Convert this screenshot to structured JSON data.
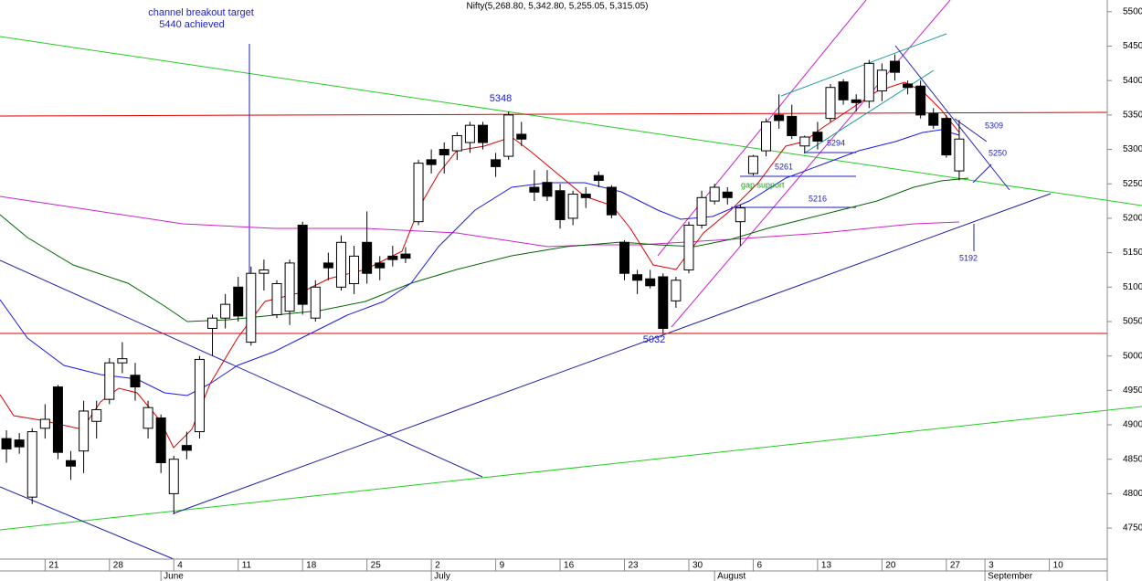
{
  "chart_data": {
    "type": "candlestick",
    "title": "Nifty(5,268.80, 5,342.80, 5,255.05, 5,315.05)",
    "open": [
      4880,
      4878,
      4795,
      4895,
      4955,
      4848,
      4862,
      4905,
      4937,
      4990,
      4972,
      4895,
      4910,
      4800,
      4870,
      4890,
      5040,
      5055,
      5100,
      5020,
      5120,
      5060,
      5065,
      5190,
      5055,
      5135,
      5100,
      5105,
      5165,
      5135,
      5145,
      5148,
      5195,
      5285,
      5300,
      5298,
      5310,
      5335,
      5285,
      5290,
      5322,
      5245,
      5252,
      5240,
      5200,
      5235,
      5262,
      5245,
      5165,
      5118,
      5112,
      5115,
      5080,
      5125,
      5190,
      5225,
      5238,
      5195,
      5265,
      5298,
      5350,
      5348,
      5305,
      5325,
      5345,
      5398,
      5372,
      5370,
      5385,
      5428,
      5395,
      5392,
      5352,
      5345,
      5268.8
    ],
    "high": [
      4892,
      4888,
      4895,
      4930,
      4958,
      4862,
      4935,
      4935,
      4997,
      5020,
      4990,
      4935,
      4915,
      4855,
      4890,
      5000,
      5060,
      5090,
      5115,
      5130,
      5140,
      5110,
      5140,
      5195,
      5110,
      5150,
      5175,
      5160,
      5210,
      5145,
      5160,
      5158,
      5285,
      5300,
      5310,
      5325,
      5340,
      5340,
      5295,
      5355,
      5340,
      5270,
      5270,
      5250,
      5240,
      5245,
      5268,
      5248,
      5168,
      5125,
      5125,
      5120,
      5115,
      5195,
      5240,
      5250,
      5245,
      5220,
      5292,
      5345,
      5380,
      5365,
      5320,
      5340,
      5395,
      5402,
      5380,
      5430,
      5425,
      5438,
      5400,
      5400,
      5360,
      5350,
      5342.8
    ],
    "low": [
      4845,
      4858,
      4785,
      4880,
      4850,
      4820,
      4830,
      4880,
      4930,
      4975,
      4935,
      4880,
      4830,
      4770,
      4850,
      4880,
      5000,
      5040,
      5050,
      5015,
      5095,
      5055,
      5045,
      5060,
      5050,
      5110,
      5095,
      5090,
      5105,
      5110,
      5130,
      5135,
      5190,
      5265,
      5265,
      5285,
      5295,
      5300,
      5260,
      5285,
      5305,
      5225,
      5225,
      5185,
      5190,
      5215,
      5245,
      5200,
      5110,
      5090,
      5098,
      5032,
      5070,
      5120,
      5185,
      5220,
      5220,
      5160,
      5262,
      5290,
      5330,
      5315,
      5295,
      5300,
      5340,
      5365,
      5355,
      5360,
      5370,
      5400,
      5380,
      5345,
      5330,
      5288,
      5255.05
    ],
    "close": [
      4865,
      4868,
      4890,
      4908,
      4860,
      4840,
      4920,
      4922,
      4990,
      4996,
      4955,
      4925,
      4845,
      4850,
      4863,
      4995,
      5055,
      5075,
      5058,
      5120,
      5125,
      5105,
      5135,
      5075,
      5100,
      5128,
      5165,
      5145,
      5120,
      5128,
      5140,
      5142,
      5280,
      5278,
      5292,
      5320,
      5335,
      5310,
      5275,
      5350,
      5315,
      5238,
      5232,
      5198,
      5235,
      5230,
      5255,
      5205,
      5120,
      5110,
      5102,
      5040,
      5110,
      5190,
      5230,
      5245,
      5230,
      5215,
      5290,
      5340,
      5342,
      5320,
      5318,
      5312,
      5390,
      5372,
      5368,
      5425,
      5415,
      5412,
      5390,
      5350,
      5335,
      5292,
      5315.05
    ],
    "up_color": "#ffffff",
    "down_color": "#000000",
    "xlim": [
      -0.5,
      85.5
    ],
    "xticks": [
      {
        "value": 3,
        "label": "21"
      },
      {
        "value": 8,
        "label": "28"
      },
      {
        "value": 13,
        "label": "4"
      },
      {
        "value": 18,
        "label": "11"
      },
      {
        "value": 23,
        "label": "18"
      },
      {
        "value": 28,
        "label": "25"
      },
      {
        "value": 33,
        "label": "2"
      },
      {
        "value": 38,
        "label": "9"
      },
      {
        "value": 43,
        "label": "16"
      },
      {
        "value": 48,
        "label": "23"
      },
      {
        "value": 53,
        "label": "30"
      },
      {
        "value": 58,
        "label": "6"
      },
      {
        "value": 63,
        "label": "13"
      },
      {
        "value": 68,
        "label": "20"
      },
      {
        "value": 73,
        "label": "27"
      },
      {
        "value": 76,
        "label": "3"
      },
      {
        "value": 81,
        "label": "10"
      }
    ],
    "month_ticks": [
      {
        "value": 12,
        "label": "June"
      },
      {
        "value": 33,
        "label": "July"
      },
      {
        "value": 55,
        "label": "August"
      },
      {
        "value": 76,
        "label": "September"
      }
    ],
    "ylim": [
      4705,
      5517
    ],
    "yticks": [
      4750,
      4800,
      4850,
      4900,
      4950,
      5000,
      5050,
      5100,
      5150,
      5200,
      5250,
      5300,
      5350,
      5400,
      5450,
      5500
    ],
    "annotations": [
      {
        "text": "channel breakout target"
      },
      {
        "text": "5440 achieved"
      },
      {
        "text": "5348"
      },
      {
        "text": "5032"
      },
      {
        "text": "5261"
      },
      {
        "text": "gap support"
      },
      {
        "text": "5216"
      },
      {
        "text": "5294"
      },
      {
        "text": "5309"
      },
      {
        "text": "5250"
      },
      {
        "text": "5192"
      }
    ]
  }
}
